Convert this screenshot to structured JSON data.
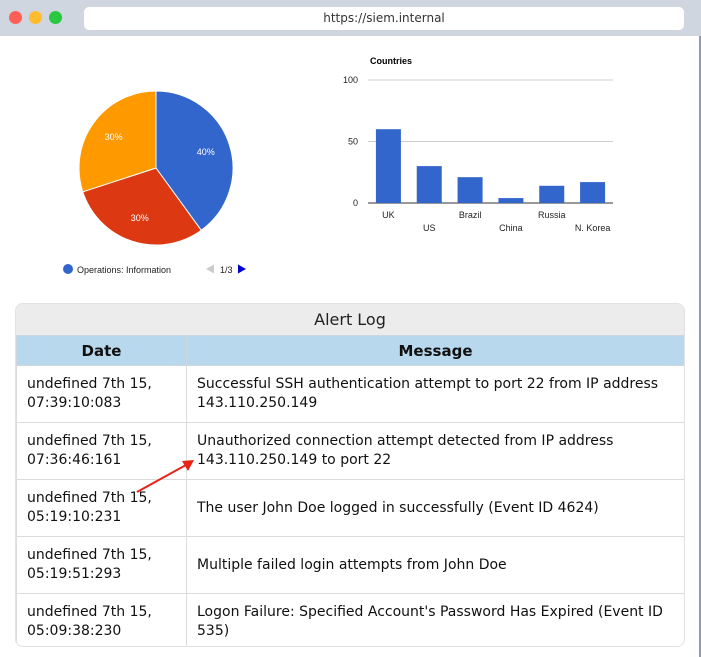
{
  "browser": {
    "url": "https://siem.internal"
  },
  "pie_chart": {
    "slices": [
      {
        "label": "40%",
        "value": 40,
        "color": "#3366cc"
      },
      {
        "label": "30%",
        "value": 30,
        "color": "#dc3912"
      },
      {
        "label": "30%",
        "value": 30,
        "color": "#ff9900"
      }
    ],
    "legend": {
      "entry": "Operations: Information",
      "color": "#3366cc",
      "pager": "1/3"
    }
  },
  "chart_data": {
    "type": "bar",
    "title": "Countries",
    "categories": [
      "UK",
      "US",
      "Brazil",
      "China",
      "Russia",
      "N. Korea"
    ],
    "values": [
      60,
      30,
      21,
      4,
      14,
      17
    ],
    "ylim": [
      0,
      100
    ],
    "yticks": [
      "0",
      "50",
      "100"
    ],
    "color": "#3366cc"
  },
  "alert_log": {
    "title": "Alert Log",
    "columns": [
      "Date",
      "Message"
    ],
    "rows": [
      {
        "date": "undefined 7th 15, 07:39:10:083",
        "message": "Successful SSH authentication attempt to port 22 from IP address 143.110.250.149"
      },
      {
        "date": "undefined 7th 15, 07:36:46:161",
        "message": "Unauthorized connection attempt detected from IP address 143.110.250.149 to port 22"
      },
      {
        "date": "undefined 7th 15, 05:19:10:231",
        "message": "The user John Doe logged in successfully (Event ID 4624)"
      },
      {
        "date": "undefined 7th 15, 05:19:51:293",
        "message": "Multiple failed login attempts from John Doe"
      },
      {
        "date": "undefined 7th 15, 05:09:38:230",
        "message": "Logon Failure: Specified Account's Password Has Expired (Event ID 535)"
      }
    ]
  }
}
